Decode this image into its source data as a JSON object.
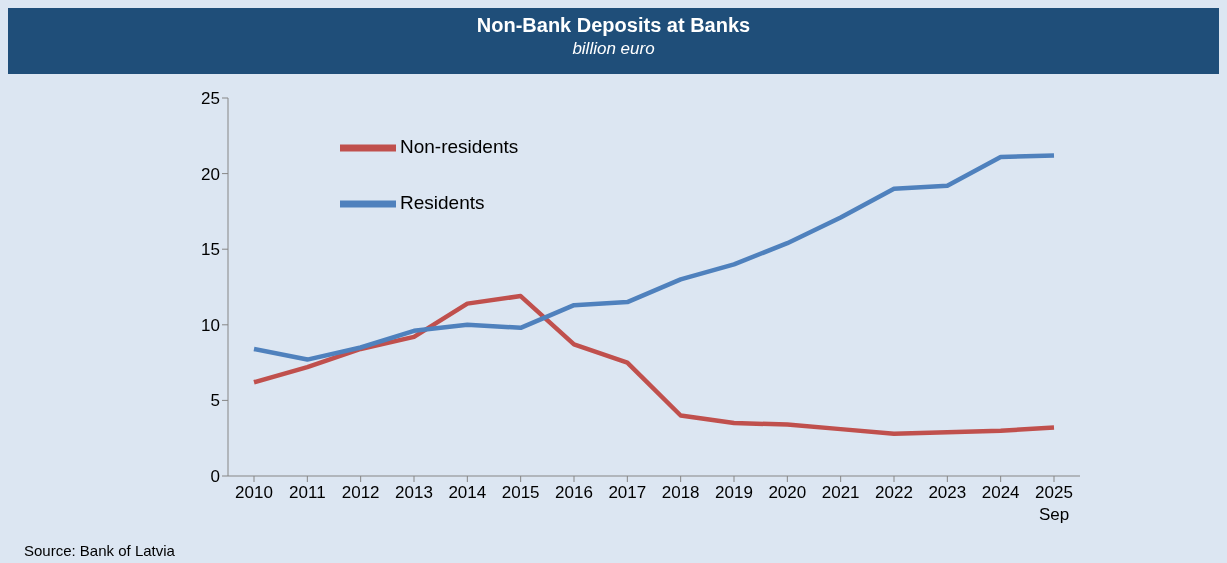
{
  "chart_data": {
    "type": "line",
    "title": "Non-Bank Deposits at Banks",
    "subtitle": "billion euro",
    "categories": [
      "2010",
      "2011",
      "2012",
      "2013",
      "2014",
      "2015",
      "2016",
      "2017",
      "2018",
      "2019",
      "2020",
      "2021",
      "2022",
      "2023",
      "2024",
      "2025\nSep"
    ],
    "series": [
      {
        "name": "Non-residents",
        "color": "#c0504d",
        "values": [
          6.2,
          7.2,
          8.4,
          9.2,
          11.4,
          11.9,
          8.7,
          7.5,
          4.0,
          3.5,
          3.4,
          3.1,
          2.8,
          2.9,
          3.0,
          3.2
        ]
      },
      {
        "name": "Residents",
        "color": "#4f81bd",
        "values": [
          8.4,
          7.7,
          8.5,
          9.6,
          10.0,
          9.8,
          11.3,
          11.5,
          13.0,
          14.0,
          15.4,
          17.1,
          19.0,
          19.2,
          21.1,
          21.2
        ]
      }
    ],
    "ylim": [
      0,
      25
    ],
    "yticks": [
      0,
      5,
      10,
      15,
      20,
      25
    ],
    "grid": false,
    "legend": "top left",
    "marker": "none",
    "line_style": "solid",
    "annotations": [
      "Source: Bank of Latvia"
    ]
  }
}
